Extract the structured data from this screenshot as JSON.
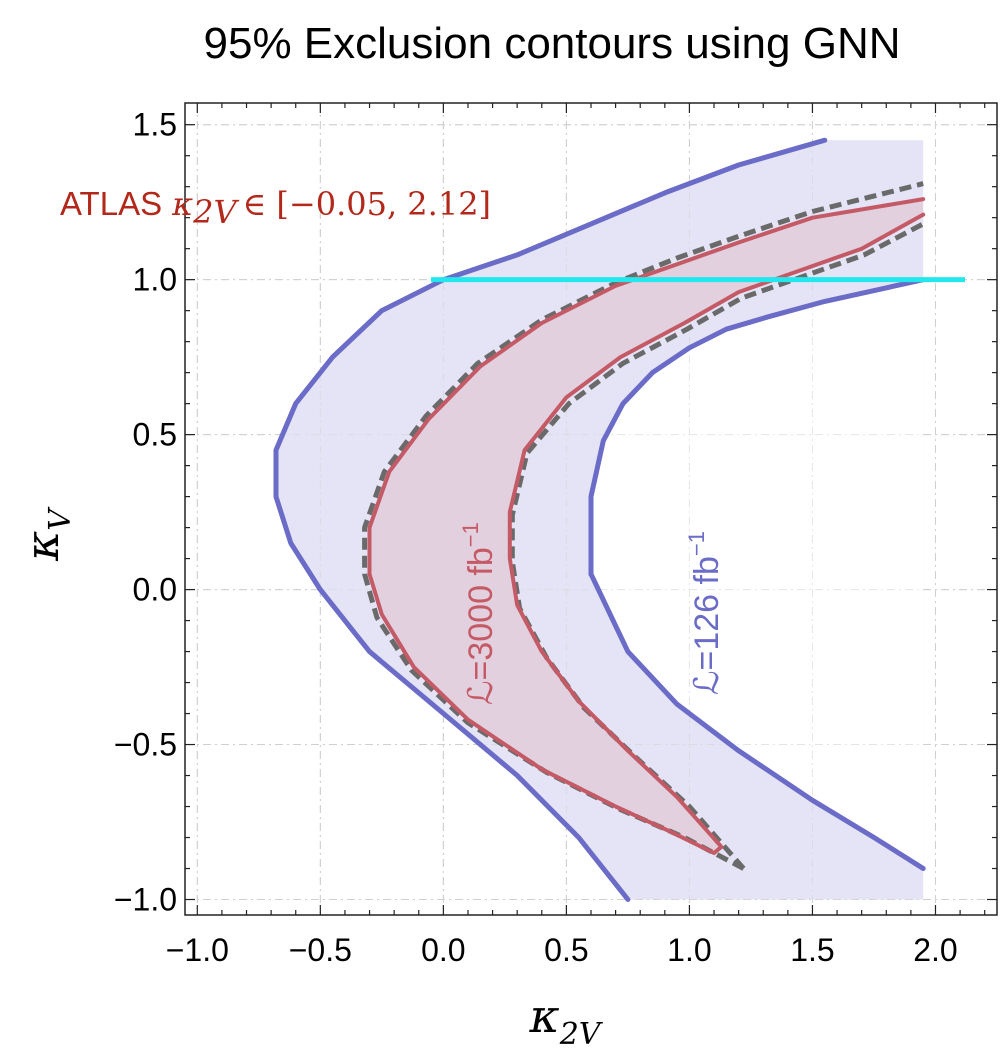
{
  "chart_data": {
    "type": "area",
    "title": "95% Exclusion contours using GNN",
    "xlabel": "κ",
    "xlabel_sub": "2V",
    "ylabel": "κ",
    "ylabel_sub": "V",
    "xlim": [
      -1.05,
      2.25
    ],
    "ylim": [
      -1.05,
      1.57
    ],
    "xticks": [
      -1.0,
      -0.5,
      0.0,
      0.5,
      1.0,
      1.5,
      2.0
    ],
    "xtick_labels": [
      "−1.0",
      "−0.5",
      "0.0",
      "0.5",
      "1.0",
      "1.5",
      "2.0"
    ],
    "yticks": [
      -1.0,
      -0.5,
      0.0,
      0.5,
      1.0,
      1.5
    ],
    "ytick_labels": [
      "−1.0",
      "−0.5",
      "0.0",
      "0.5",
      "1.0",
      "1.5"
    ],
    "grid": true,
    "colors": {
      "lumi126": "#6b6bc8",
      "lumi126_fill": "#e4e4f6",
      "lumi3000": "#c45a66",
      "lumi3000_fill": "#e3cfdc",
      "dashed": "#6a6a6a",
      "atlas_line": "#22e8ee",
      "atlas_text": "#b2281a"
    },
    "shaded_region": {
      "name": "126 fb-1 band",
      "x": [
        -0.7,
        1.95
      ],
      "y": [
        -1.0,
        1.45
      ]
    },
    "series": [
      {
        "name": "ℒ=126 fb⁻¹",
        "style": "solid",
        "x_outer": [
          0.75,
          0.55,
          0.3,
          0.0,
          -0.3,
          -0.5,
          -0.62,
          -0.68,
          -0.68,
          -0.6,
          -0.45,
          -0.25,
          0.0,
          0.3,
          0.6,
          0.9,
          1.2,
          1.55
        ],
        "y_outer": [
          -1.0,
          -0.8,
          -0.6,
          -0.4,
          -0.2,
          0.0,
          0.15,
          0.3,
          0.45,
          0.6,
          0.75,
          0.9,
          1.0,
          1.08,
          1.18,
          1.28,
          1.37,
          1.45
        ],
        "x_inner": [
          0.6,
          0.6,
          0.65,
          0.73,
          0.85,
          1.0,
          1.15,
          1.32,
          1.55,
          1.95
        ],
        "y_inner": [
          0.05,
          0.3,
          0.48,
          0.6,
          0.7,
          0.78,
          0.84,
          0.88,
          0.93,
          1.0
        ],
        "x_lower": [
          0.6,
          0.75,
          0.95,
          1.2,
          1.5,
          1.75,
          1.95
        ],
        "y_lower": [
          0.05,
          -0.2,
          -0.37,
          -0.52,
          -0.68,
          -0.8,
          -0.9
        ]
      },
      {
        "name": "ℒ=3000 fb⁻¹",
        "style": "solid",
        "x_outer": [
          1.1,
          0.92,
          0.7,
          0.4,
          0.1,
          -0.12,
          -0.25,
          -0.3,
          -0.3,
          -0.22,
          -0.06,
          0.15,
          0.4,
          0.7,
          0.95,
          1.2,
          1.5,
          1.95
        ],
        "y_outer": [
          -0.85,
          -0.78,
          -0.7,
          -0.58,
          -0.42,
          -0.25,
          -0.08,
          0.05,
          0.2,
          0.38,
          0.55,
          0.72,
          0.86,
          0.98,
          1.05,
          1.12,
          1.2,
          1.26
        ],
        "x_inner": [
          1.13,
          0.95,
          0.75,
          0.55,
          0.4,
          0.3,
          0.27,
          0.27,
          0.33,
          0.5,
          0.72,
          0.98,
          1.2,
          1.45,
          1.7,
          1.95
        ],
        "y_inner": [
          -0.83,
          -0.67,
          -0.52,
          -0.36,
          -0.2,
          -0.05,
          0.1,
          0.25,
          0.45,
          0.62,
          0.75,
          0.86,
          0.96,
          1.03,
          1.1,
          1.21
        ]
      },
      {
        "name": "GNN dashed",
        "style": "dashed",
        "x_outer": [
          1.22,
          0.98,
          0.72,
          0.42,
          0.1,
          -0.13,
          -0.27,
          -0.32,
          -0.32,
          -0.24,
          -0.07,
          0.14,
          0.4,
          0.7,
          0.95,
          1.2,
          1.5,
          1.95
        ],
        "y_outer": [
          -0.9,
          -0.8,
          -0.71,
          -0.59,
          -0.43,
          -0.26,
          -0.09,
          0.05,
          0.2,
          0.38,
          0.56,
          0.73,
          0.87,
          0.99,
          1.07,
          1.14,
          1.22,
          1.31
        ],
        "x_inner": [
          1.22,
          1.0,
          0.78,
          0.57,
          0.42,
          0.31,
          0.28,
          0.28,
          0.34,
          0.51,
          0.73,
          0.99,
          1.21,
          1.46,
          1.71,
          1.95
        ],
        "y_inner": [
          -0.9,
          -0.7,
          -0.54,
          -0.38,
          -0.22,
          -0.06,
          0.09,
          0.24,
          0.44,
          0.6,
          0.73,
          0.84,
          0.94,
          1.01,
          1.08,
          1.18
        ]
      },
      {
        "name": "ATLAS",
        "style": "hline",
        "x": [
          -0.05,
          2.12
        ],
        "y": [
          1.0,
          1.0
        ]
      }
    ],
    "annotations": {
      "atlas_prefix": "ATLAS",
      "atlas_symbol": "κ",
      "atlas_sub": "2V",
      "atlas_interval": "∈ [−0.05, 2.12]",
      "lumi3000_label": "ℒ=3000 fb",
      "lumi3000_sup": "−1",
      "lumi126_label": "ℒ=126 fb",
      "lumi126_sup": "−1"
    }
  }
}
